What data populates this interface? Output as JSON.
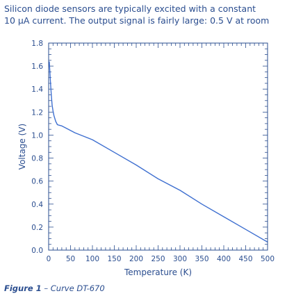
{
  "intro": {
    "line1": "Silicon diode sensors are typically excited with a constant",
    "line2": "10 μA current. The output signal is fairly large: 0.5 V at room"
  },
  "caption": {
    "label": "Figure 1",
    "text": " – Curve DT-670"
  },
  "chart_data": {
    "type": "line",
    "title": "",
    "xlabel": "Temperature (K)",
    "ylabel": "Voltage (V)",
    "xlim": [
      0,
      500
    ],
    "ylim": [
      0,
      1.8
    ],
    "xticks": [
      "0",
      "50",
      "100",
      "150",
      "200",
      "250",
      "300",
      "350",
      "400",
      "450",
      "500"
    ],
    "yticks": [
      "0.0",
      "0.2",
      "0.4",
      "0.6",
      "0.8",
      "1.0",
      "1.2",
      "1.4",
      "1.6",
      "1.8"
    ],
    "grid": false,
    "series": [
      {
        "x": [
          1.4,
          2,
          4,
          6,
          8,
          10,
          12,
          16,
          20,
          25,
          30,
          40,
          60,
          80,
          100,
          150,
          200,
          250,
          300,
          350,
          400,
          450,
          500
        ],
        "y": [
          1.64,
          1.6,
          1.47,
          1.35,
          1.26,
          1.21,
          1.17,
          1.12,
          1.09,
          1.085,
          1.08,
          1.06,
          1.02,
          0.99,
          0.96,
          0.85,
          0.74,
          0.62,
          0.52,
          0.4,
          0.29,
          0.18,
          0.07
        ],
        "color": "#3e6fd0"
      }
    ]
  }
}
